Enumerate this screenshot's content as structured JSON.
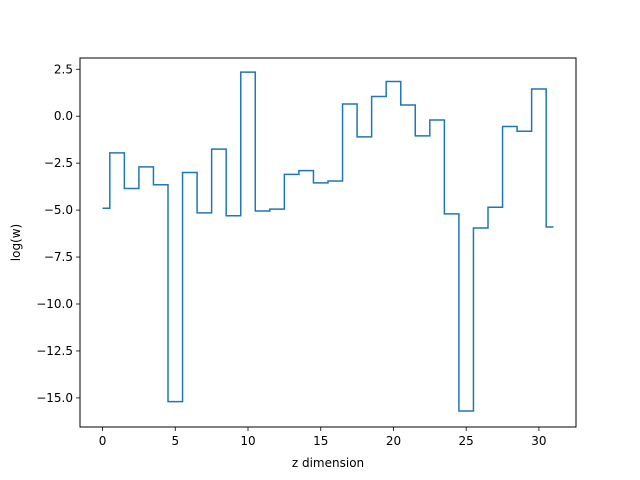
{
  "chart_data": {
    "type": "line",
    "drawstyle": "steps-mid",
    "xlabel": "z dimension",
    "ylabel": "log(w)",
    "xlim": [
      -1.55,
      32.55
    ],
    "ylim": [
      -16.55,
      3.1
    ],
    "grid": false,
    "legend": "none",
    "x_ticks": [
      0,
      5,
      10,
      15,
      20,
      25,
      30
    ],
    "y_ticks": [
      2.5,
      0.0,
      -2.5,
      -5.0,
      -7.5,
      -10.0,
      -12.5,
      -15.0
    ],
    "x_tick_labels": [
      "0",
      "5",
      "10",
      "15",
      "20",
      "25",
      "30"
    ],
    "y_tick_labels": [
      "2.5",
      "0.0",
      "−2.5",
      "−5.0",
      "−7.5",
      "−10.0",
      "−12.5",
      "−15.0"
    ],
    "series": [
      {
        "color": "#1f77b4",
        "x": [
          0,
          1,
          2,
          3,
          4,
          5,
          6,
          7,
          8,
          9,
          10,
          11,
          12,
          13,
          14,
          15,
          16,
          17,
          18,
          19,
          20,
          21,
          22,
          23,
          24,
          25,
          26,
          27,
          28,
          29,
          30,
          31
        ],
        "y": [
          -4.9,
          -1.95,
          -3.85,
          -2.7,
          -3.65,
          -15.2,
          -3.0,
          -5.15,
          -1.75,
          -5.3,
          2.35,
          -5.05,
          -4.95,
          -3.1,
          -2.9,
          -3.55,
          -3.45,
          0.65,
          -1.1,
          1.05,
          1.85,
          0.6,
          -1.05,
          -0.2,
          -5.2,
          -15.7,
          -5.95,
          -4.85,
          -0.55,
          -0.8,
          1.45,
          -5.9
        ]
      }
    ]
  }
}
